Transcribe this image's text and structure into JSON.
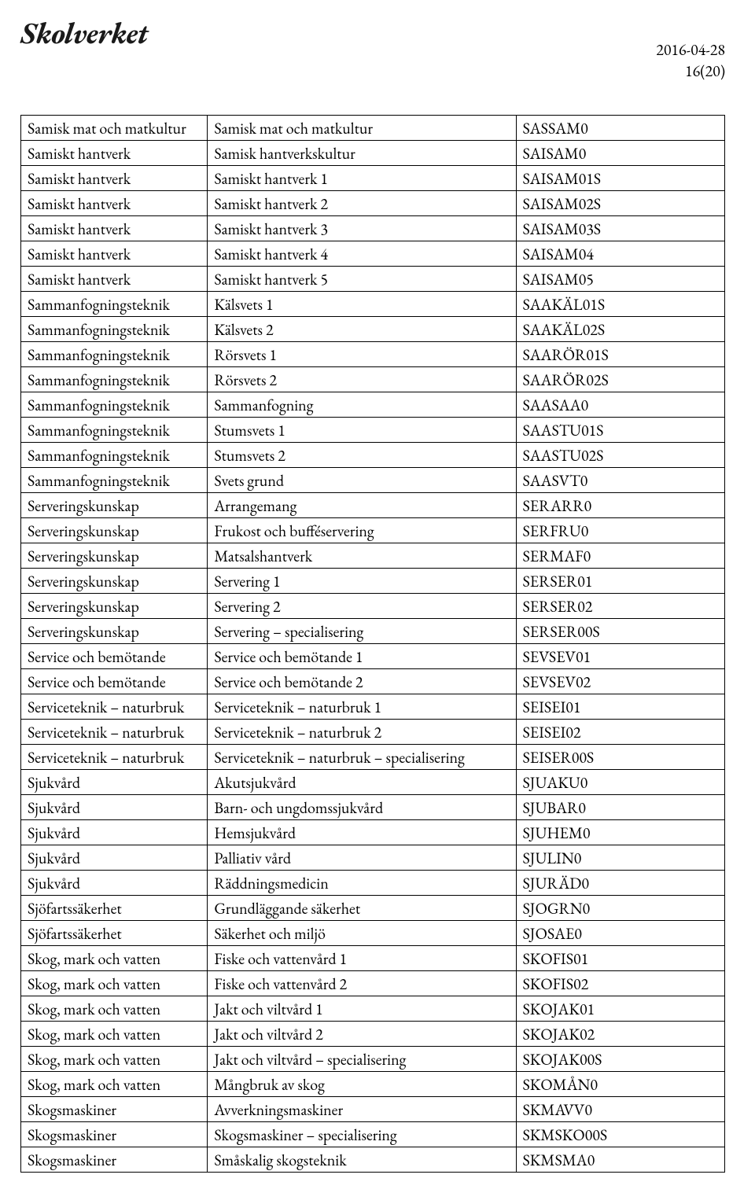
{
  "logo_text": "Skolverket",
  "meta": {
    "date": "2016-04-28",
    "page": "16(20)"
  },
  "table": {
    "columns": [
      "col1",
      "col2",
      "col3"
    ],
    "rows": [
      [
        "Samisk mat och matkultur",
        "Samisk mat och matkultur",
        "SASSAM0"
      ],
      [
        "Samiskt hantverk",
        "Samisk hantverkskultur",
        "SAISAM0"
      ],
      [
        "Samiskt hantverk",
        "Samiskt hantverk 1",
        "SAISAM01S"
      ],
      [
        "Samiskt hantverk",
        "Samiskt hantverk 2",
        "SAISAM02S"
      ],
      [
        "Samiskt hantverk",
        "Samiskt hantverk 3",
        "SAISAM03S"
      ],
      [
        "Samiskt hantverk",
        "Samiskt hantverk 4",
        "SAISAM04"
      ],
      [
        "Samiskt hantverk",
        "Samiskt hantverk 5",
        "SAISAM05"
      ],
      [
        "Sammanfogningsteknik",
        "Kälsvets 1",
        "SAAKÄL01S"
      ],
      [
        "Sammanfogningsteknik",
        "Kälsvets 2",
        "SAAKÄL02S"
      ],
      [
        "Sammanfogningsteknik",
        "Rörsvets 1",
        "SAARÖR01S"
      ],
      [
        "Sammanfogningsteknik",
        "Rörsvets 2",
        "SAARÖR02S"
      ],
      [
        "Sammanfogningsteknik",
        "Sammanfogning",
        "SAASAA0"
      ],
      [
        "Sammanfogningsteknik",
        "Stumsvets 1",
        "SAASTU01S"
      ],
      [
        "Sammanfogningsteknik",
        "Stumsvets 2",
        "SAASTU02S"
      ],
      [
        "Sammanfogningsteknik",
        "Svets grund",
        "SAASVT0"
      ],
      [
        "Serveringskunskap",
        "Arrangemang",
        "SERARR0"
      ],
      [
        "Serveringskunskap",
        "Frukost och bufféservering",
        "SERFRU0"
      ],
      [
        "Serveringskunskap",
        "Matsalshantverk",
        "SERMAF0"
      ],
      [
        "Serveringskunskap",
        "Servering 1",
        "SERSER01"
      ],
      [
        "Serveringskunskap",
        "Servering 2",
        "SERSER02"
      ],
      [
        "Serveringskunskap",
        "Servering – specialisering",
        "SERSER00S"
      ],
      [
        "Service och bemötande",
        "Service och bemötande 1",
        "SEVSEV01"
      ],
      [
        "Service och bemötande",
        "Service och bemötande 2",
        "SEVSEV02"
      ],
      [
        "Serviceteknik – naturbruk",
        "Serviceteknik – naturbruk 1",
        "SEISEI01"
      ],
      [
        "Serviceteknik – naturbruk",
        "Serviceteknik – naturbruk 2",
        "SEISEI02"
      ],
      [
        "Serviceteknik – naturbruk",
        "Serviceteknik – naturbruk – specialisering",
        "SEISER00S"
      ],
      [
        "Sjukvård",
        "Akutsjukvård",
        "SJUAKU0"
      ],
      [
        "Sjukvård",
        "Barn- och ungdomssjukvård",
        "SJUBAR0"
      ],
      [
        "Sjukvård",
        "Hemsjukvård",
        "SJUHEM0"
      ],
      [
        "Sjukvård",
        "Palliativ vård",
        "SJULIN0"
      ],
      [
        "Sjukvård",
        "Räddningsmedicin",
        "SJURÄD0"
      ],
      [
        "Sjöfartssäkerhet",
        "Grundläggande säkerhet",
        "SJOGRN0"
      ],
      [
        "Sjöfartssäkerhet",
        "Säkerhet och miljö",
        "SJOSAE0"
      ],
      [
        "Skog, mark och vatten",
        "Fiske och vattenvård 1",
        "SKOFIS01"
      ],
      [
        "Skog, mark och vatten",
        "Fiske och vattenvård 2",
        "SKOFIS02"
      ],
      [
        "Skog, mark och vatten",
        "Jakt och viltvård 1",
        "SKOJAK01"
      ],
      [
        "Skog, mark och vatten",
        "Jakt och viltvård 2",
        "SKOJAK02"
      ],
      [
        "Skog, mark och vatten",
        "Jakt och viltvård – specialisering",
        "SKOJAK00S"
      ],
      [
        "Skog, mark och vatten",
        "Mångbruk av skog",
        "SKOMÅN0"
      ],
      [
        "Skogsmaskiner",
        "Avverkningsmaskiner",
        "SKMAVV0"
      ],
      [
        "Skogsmaskiner",
        "Skogsmaskiner – specialisering",
        "SKMSKO00S"
      ],
      [
        "Skogsmaskiner",
        "Småskalig skogsteknik",
        "SKMSMA0"
      ]
    ]
  }
}
